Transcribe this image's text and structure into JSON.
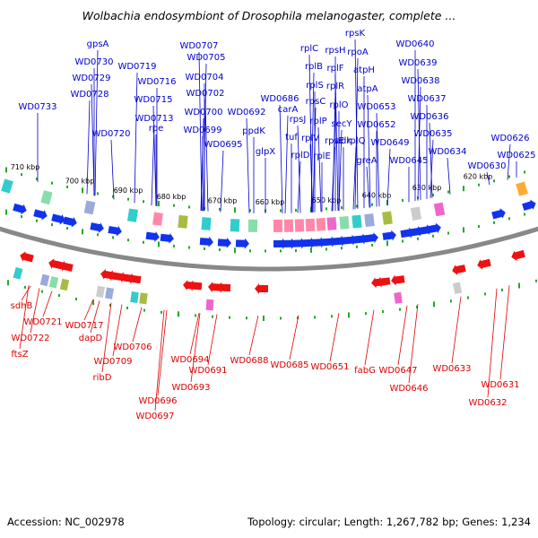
{
  "title": "Wolbachia endosymbiont of Drosophila melanogaster, complete ...",
  "footer": {
    "accession": "Accession: NC_002978",
    "summary": "Topology: circular; Length: 1,267,782 bp; Genes: 1,234"
  },
  "colors": {
    "forward_label": "#0000cc",
    "reverse_label": "#dd0000",
    "forward_arrow": "#1133ee",
    "reverse_arrow": "#ee1111",
    "backbone": "#888888",
    "tick": "#22aa22"
  },
  "ticks": [
    "710 kbp",
    "700 kbp",
    "690 kbp",
    "680 kbp",
    "670 kbp",
    "660 kbp",
    "650 kbp",
    "640 kbp",
    "630 kbp",
    "620 kbp"
  ],
  "forward_labels": [
    "gpsA",
    "WD0730",
    "WD0729",
    "WD0728",
    "WD0733",
    "WD0720",
    "WD0719",
    "WD0716",
    "WD0715",
    "WD0713",
    "rpe",
    "WD0707",
    "WD0705",
    "WD0704",
    "WD0702",
    "WD0700",
    "WD0699",
    "WD0692",
    "WD0695",
    "ppdK",
    "WD0686",
    "carA",
    "glpX",
    "rplC",
    "rplB",
    "rplS",
    "rpsJ",
    "rpsC",
    "tuf",
    "rplV",
    "rplD",
    "rpsH",
    "rplF",
    "rplR",
    "rplO",
    "rplP",
    "rpsE",
    "rplE",
    "rpsK",
    "rpoA",
    "atpH",
    "atpA",
    "secY",
    "adk",
    "WD0653",
    "rplQ",
    "WD0652",
    "greA",
    "WD0649",
    "WD0640",
    "WD0639",
    "WD0638",
    "WD0637",
    "WD0636",
    "WD0635",
    "WD0645",
    "WD0634",
    "WD0626",
    "WD0625",
    "WD0630"
  ],
  "reverse_labels": [
    "sdhB",
    "WD0721",
    "WD0722",
    "ftsZ",
    "WD0717",
    "dapD",
    "WD0709",
    "ribD",
    "WD0706",
    "WD0694",
    "WD0691",
    "WD0693",
    "WD0696",
    "WD0697",
    "WD0688",
    "WD0685",
    "WD0651",
    "fabG",
    "WD0647",
    "WD0646",
    "WD0633",
    "WD0631",
    "WD0632"
  ]
}
